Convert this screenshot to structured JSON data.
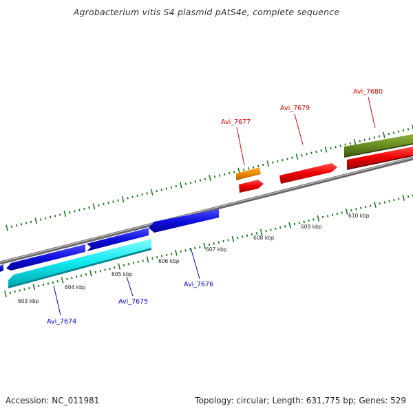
{
  "title": "Agrobacterium vitis S4 plasmid pAtS4e, complete sequence",
  "footer": {
    "accession": "Accession: NC_011981",
    "summary": "Topology: circular; Length: 631,775 bp; Genes: 529"
  },
  "scale_labels": [
    "603 kbp",
    "604 kbp",
    "605 kbp",
    "606 kbp",
    "607 kbp",
    "608 kbp",
    "609 kbp",
    "610 kbp"
  ],
  "gene_labels": {
    "avi_7674": "Avi_7674",
    "avi_7675": "Avi_7675",
    "avi_7676": "Avi_7676",
    "avi_7677": "Avi_7677",
    "avi_7679": "Avi_7679",
    "avi_7680": "Avi_7680"
  },
  "colors": {
    "forward_label": "#dd0000",
    "reverse_label": "#0000cc",
    "tick": "#1a7a1a",
    "backbone": "#888888",
    "blue_gene": "#1010dd",
    "cyan_gene": "#10e8f0",
    "red_gene": "#ee0000",
    "orange_gene": "#ee8800",
    "olive_gene": "#6b8e23"
  }
}
